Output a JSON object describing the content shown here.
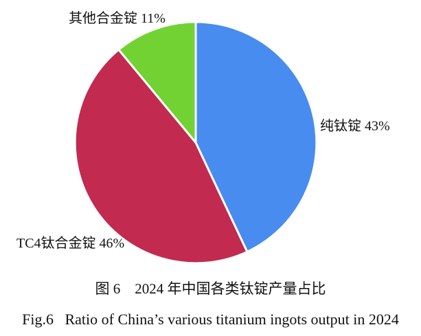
{
  "chart_data": {
    "type": "pie",
    "direction": "clockwise",
    "start_angle_deg": 0,
    "legend_position": "none",
    "label_style": "outside-callouts",
    "separator_color": "#ffffff",
    "background_color": "#ffffff",
    "slices": [
      {
        "name": "纯钛锭",
        "value_pct": 43,
        "color": "#488cf0",
        "callout": "纯钛锭 43%"
      },
      {
        "name": "TC4钛合金锭",
        "value_pct": 46,
        "color": "#c22a50",
        "callout": "TC4钛合金锭 46%"
      },
      {
        "name": "其他合金锭",
        "value_pct": 11,
        "color": "#72d233",
        "callout": "其他合金锭 11%"
      }
    ],
    "caption_zh": "图 6　2024 年中国各类钛锭产量占比",
    "caption_en": "Fig.6   Ratio of China’s various titanium ingots output in 2024"
  }
}
